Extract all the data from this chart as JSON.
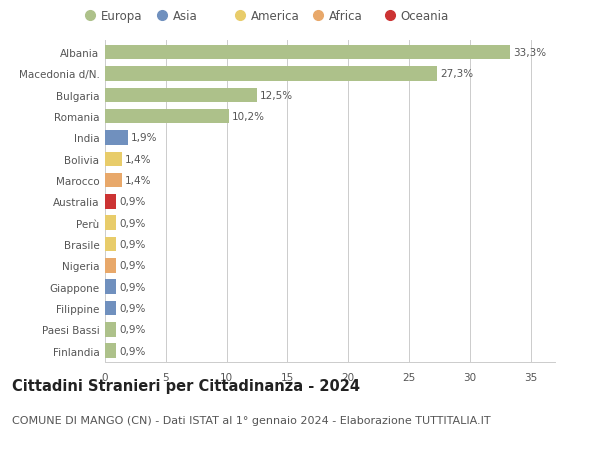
{
  "categories": [
    "Albania",
    "Macedonia d/N.",
    "Bulgaria",
    "Romania",
    "India",
    "Bolivia",
    "Marocco",
    "Australia",
    "Perù",
    "Brasile",
    "Nigeria",
    "Giappone",
    "Filippine",
    "Paesi Bassi",
    "Finlandia"
  ],
  "values": [
    33.3,
    27.3,
    12.5,
    10.2,
    1.9,
    1.4,
    1.4,
    0.9,
    0.9,
    0.9,
    0.9,
    0.9,
    0.9,
    0.9,
    0.9
  ],
  "labels": [
    "33,3%",
    "27,3%",
    "12,5%",
    "10,2%",
    "1,9%",
    "1,4%",
    "1,4%",
    "0,9%",
    "0,9%",
    "0,9%",
    "0,9%",
    "0,9%",
    "0,9%",
    "0,9%",
    "0,9%"
  ],
  "colors": [
    "#adc18a",
    "#adc18a",
    "#adc18a",
    "#adc18a",
    "#7090be",
    "#e8cc6a",
    "#e8a86a",
    "#cc3333",
    "#e8cc6a",
    "#e8cc6a",
    "#e8a86a",
    "#7090be",
    "#7090be",
    "#adc18a",
    "#adc18a"
  ],
  "legend_labels": [
    "Europa",
    "Asia",
    "America",
    "Africa",
    "Oceania"
  ],
  "legend_colors": [
    "#adc18a",
    "#7090be",
    "#e8cc6a",
    "#e8a86a",
    "#cc3333"
  ],
  "title": "Cittadini Stranieri per Cittadinanza - 2024",
  "subtitle": "COMUNE DI MANGO (CN) - Dati ISTAT al 1° gennaio 2024 - Elaborazione TUTTITALIA.IT",
  "xlim": [
    0,
    37
  ],
  "xticks": [
    0,
    5,
    10,
    15,
    20,
    25,
    30,
    35
  ],
  "background_color": "#ffffff",
  "grid_color": "#cccccc",
  "bar_height": 0.68,
  "title_fontsize": 10.5,
  "subtitle_fontsize": 8,
  "label_fontsize": 7.5,
  "tick_fontsize": 7.5,
  "legend_fontsize": 8.5,
  "text_color": "#555555",
  "title_color": "#222222"
}
